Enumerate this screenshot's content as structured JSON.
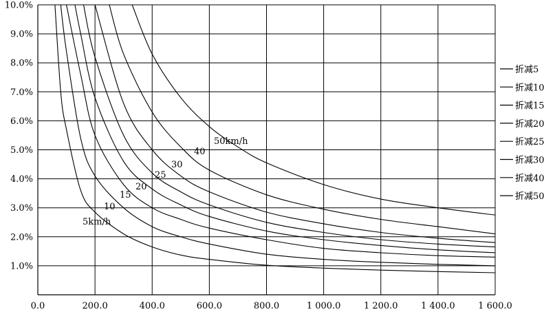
{
  "chart_data": {
    "type": "line",
    "title": "",
    "xlabel": "",
    "ylabel": "",
    "xlim": [
      0,
      1600
    ],
    "ylim": [
      0,
      10
    ],
    "x_ticks": [
      "0.0",
      "200.0",
      "400.0",
      "600.0",
      "800.0",
      "1 000.0",
      "1 200.0",
      "1 400.0",
      "1 600.0"
    ],
    "y_ticks": [
      "1.0%",
      "2.0%",
      "3.0%",
      "4.0%",
      "5.0%",
      "6.0%",
      "7.0%",
      "8.0%",
      "9.0%",
      "10.0%"
    ],
    "grid": true,
    "legend_position": "right",
    "series": [
      {
        "name": "折减5",
        "curve_label": "5km/h",
        "x": [
          60,
          80,
          100,
          150,
          200,
          300,
          400,
          500,
          600,
          800,
          1000,
          1200,
          1400,
          1600
        ],
        "y": [
          10.0,
          7.0,
          5.7,
          3.6,
          2.85,
          2.1,
          1.65,
          1.37,
          1.22,
          1.02,
          0.92,
          0.85,
          0.8,
          0.76
        ]
      },
      {
        "name": "折减10",
        "curve_label": "10",
        "x": [
          80,
          100,
          150,
          200,
          300,
          400,
          500,
          600,
          800,
          1000,
          1200,
          1400,
          1600
        ],
        "y": [
          10.0,
          8.4,
          5.4,
          4.1,
          3.0,
          2.35,
          2.0,
          1.75,
          1.4,
          1.22,
          1.12,
          1.05,
          1.0
        ]
      },
      {
        "name": "折减15",
        "curve_label": "15",
        "x": [
          100,
          150,
          200,
          300,
          400,
          500,
          600,
          800,
          1000,
          1200,
          1400,
          1600
        ],
        "y": [
          10.0,
          7.6,
          5.5,
          3.8,
          3.0,
          2.6,
          2.3,
          1.9,
          1.6,
          1.45,
          1.35,
          1.3
        ]
      },
      {
        "name": "折减20",
        "curve_label": "20",
        "x": [
          130,
          150,
          200,
          300,
          400,
          500,
          600,
          800,
          1000,
          1200,
          1400,
          1600
        ],
        "y": [
          10.0,
          9.0,
          6.8,
          4.6,
          3.65,
          3.1,
          2.7,
          2.2,
          1.9,
          1.7,
          1.55,
          1.45
        ]
      },
      {
        "name": "折减25",
        "curve_label": "25",
        "x": [
          160,
          200,
          300,
          400,
          500,
          600,
          800,
          1000,
          1200,
          1400,
          1600
        ],
        "y": [
          10.0,
          8.2,
          5.5,
          4.2,
          3.55,
          3.1,
          2.5,
          2.15,
          1.9,
          1.75,
          1.65
        ]
      },
      {
        "name": "折减30",
        "curve_label": "30",
        "x": [
          200,
          300,
          400,
          500,
          600,
          800,
          1000,
          1200,
          1400,
          1600
        ],
        "y": [
          10.0,
          6.6,
          5.0,
          4.1,
          3.55,
          2.85,
          2.45,
          2.15,
          1.95,
          1.8
        ]
      },
      {
        "name": "折减40",
        "curve_label": "40",
        "x": [
          250,
          300,
          400,
          500,
          600,
          800,
          1000,
          1200,
          1400,
          1600
        ],
        "y": [
          10.0,
          8.3,
          6.3,
          5.1,
          4.3,
          3.45,
          2.95,
          2.6,
          2.35,
          2.1
        ]
      },
      {
        "name": "折减50",
        "curve_label": "50km/h",
        "x": [
          330,
          400,
          500,
          600,
          700,
          800,
          1000,
          1200,
          1400,
          1600
        ],
        "y": [
          10.0,
          8.3,
          6.8,
          5.8,
          5.1,
          4.55,
          3.8,
          3.3,
          3.0,
          2.75
        ]
      }
    ]
  }
}
